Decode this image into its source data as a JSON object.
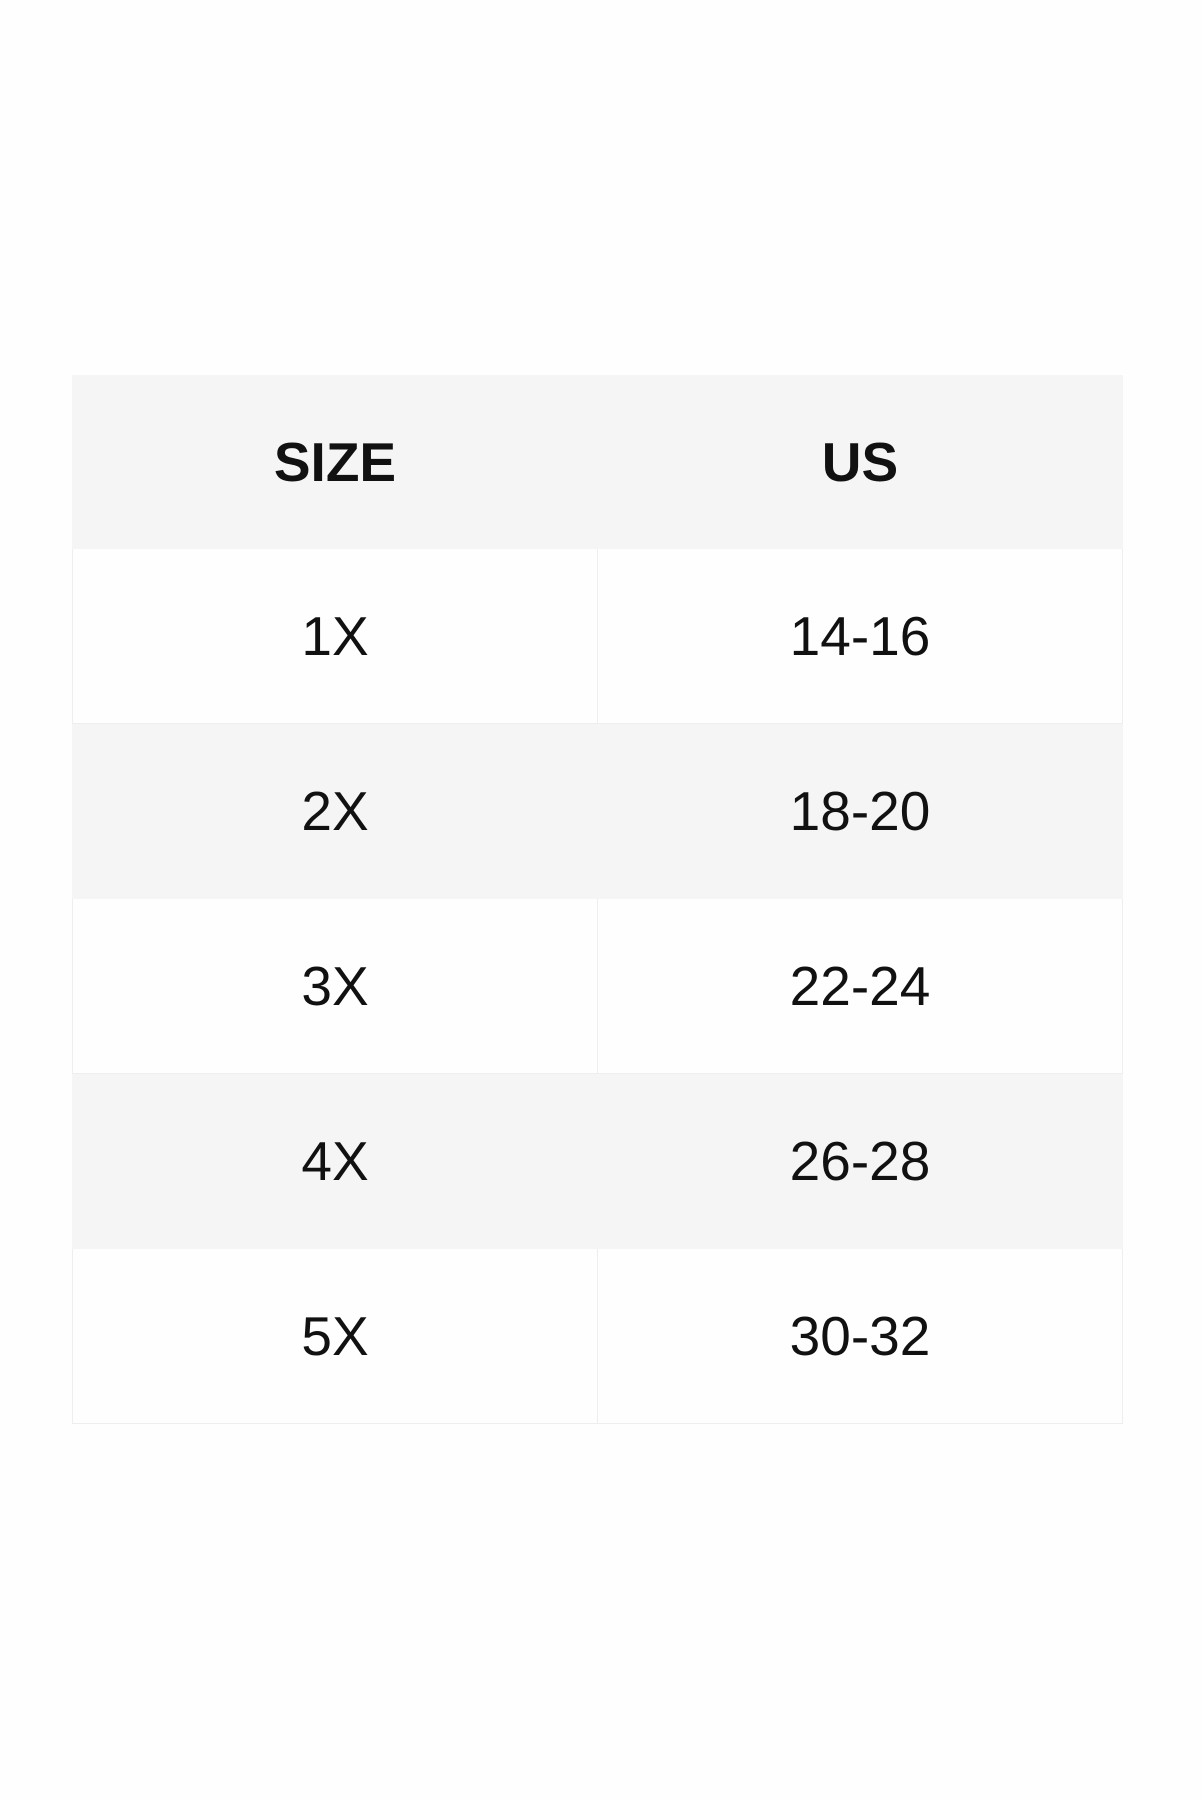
{
  "table": {
    "header": [
      "SIZE",
      "US"
    ],
    "rows": [
      [
        "1X",
        "14-16"
      ],
      [
        "2X",
        "18-20"
      ],
      [
        "3X",
        "22-24"
      ],
      [
        "4X",
        "26-28"
      ],
      [
        "5X",
        "30-32"
      ]
    ]
  }
}
